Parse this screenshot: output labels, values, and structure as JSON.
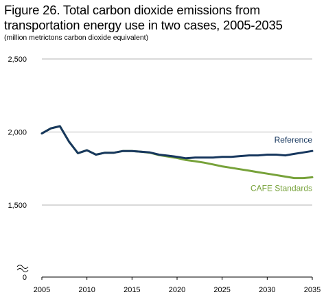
{
  "figure": {
    "title": "Figure 26. Total carbon dioxide emissions from transportation energy use in two cases, 2005-2035",
    "subtitle": "(million metrictons carbon dioxide equivalent)"
  },
  "chart_data": {
    "type": "line",
    "title": "Figure 26. Total carbon dioxide emissions from transportation energy use in two cases, 2005-2035",
    "subtitle": "(million metrictons carbon dioxide equivalent)",
    "xlabel": "",
    "ylabel": "",
    "x_ticks": [
      "2005",
      "2010",
      "2015",
      "2020",
      "2025",
      "2030",
      "2035"
    ],
    "y_ticks": [
      "0",
      "1,500",
      "2,000",
      "2,500"
    ],
    "y_tick_values": [
      0,
      1500,
      2000,
      2500
    ],
    "axis_break": true,
    "xlim": [
      2005,
      2035
    ],
    "ylim_visible": [
      1500,
      2500
    ],
    "grid": "horizontal",
    "legend": "labels next to lines",
    "x": [
      2005,
      2006,
      2007,
      2008,
      2009,
      2010,
      2011,
      2012,
      2013,
      2014,
      2015,
      2016,
      2017,
      2018,
      2019,
      2020,
      2021,
      2022,
      2023,
      2024,
      2025,
      2026,
      2027,
      2028,
      2029,
      2030,
      2031,
      2032,
      2033,
      2034,
      2035
    ],
    "series": [
      {
        "name": "Reference",
        "color": "#17375e",
        "values": [
          1990,
          2025,
          2040,
          1935,
          1855,
          1875,
          1845,
          1858,
          1858,
          1870,
          1870,
          1865,
          1860,
          1845,
          1838,
          1830,
          1820,
          1825,
          1825,
          1825,
          1830,
          1830,
          1835,
          1840,
          1840,
          1845,
          1845,
          1840,
          1850,
          1860,
          1870
        ]
      },
      {
        "name": "CAFE Standards",
        "color": "#77a23a",
        "values": [
          1990,
          2025,
          2040,
          1935,
          1855,
          1875,
          1845,
          1858,
          1858,
          1870,
          1870,
          1865,
          1858,
          1842,
          1832,
          1822,
          1808,
          1800,
          1790,
          1778,
          1765,
          1755,
          1745,
          1735,
          1725,
          1715,
          1705,
          1695,
          1685,
          1685,
          1690
        ]
      }
    ]
  }
}
